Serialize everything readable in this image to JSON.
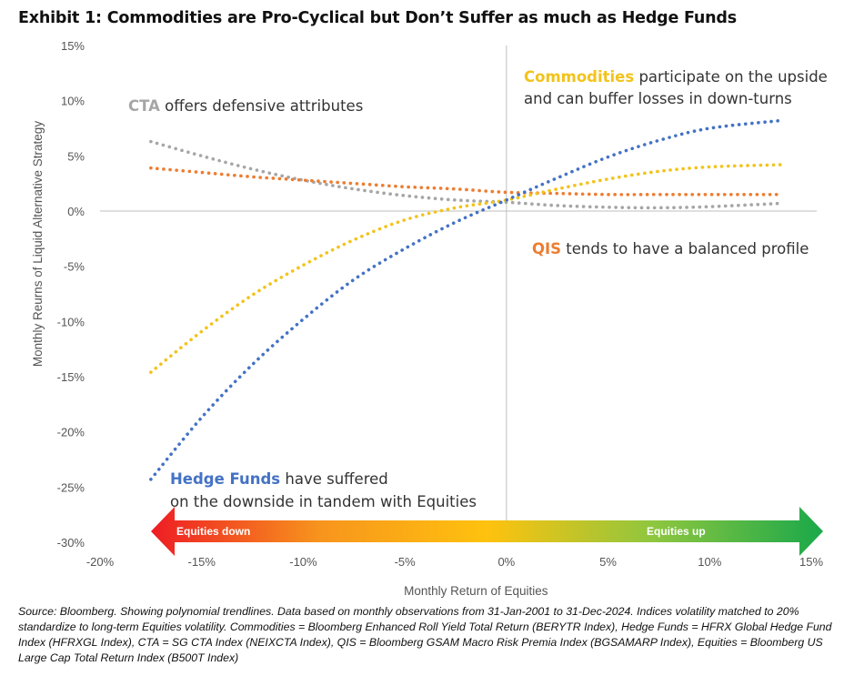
{
  "title": "Exhibit 1: Commodities are Pro-Cyclical but Don’t Suffer as much as Hedge Funds",
  "source": "Source: Bloomberg. Showing polynomial trendlines. Data based on monthly observations from 31-Jan-2001 to 31-Dec-2024. Indices volatility matched to 20% standardize to long-term Equities volatility. Commodities = Bloomberg Enhanced Roll Yield Total Return (BERYTR Index), Hedge Funds = HFRX Global Hedge Fund Index (HFRXGL Index), CTA = SG CTA Index (NEIXCTA Index), QIS = Bloomberg GSAM Macro Risk Premia Index (BGSAMARP Index), Equities = Bloomberg US Large Cap Total Return Index (B500T Index)",
  "chart_data": {
    "type": "line",
    "xlabel": "Monthly Return of Equities",
    "ylabel": "Monthly Reurns of Liquid Alternative Strategy",
    "xlim": [
      -20,
      15
    ],
    "ylim": [
      -30,
      15
    ],
    "x_ticks": [
      "-20%",
      "-15%",
      "-10%",
      "-5%",
      "0%",
      "5%",
      "10%",
      "15%"
    ],
    "y_ticks": [
      "15%",
      "10%",
      "5%",
      "0%",
      "-5%",
      "-10%",
      "-15%",
      "-20%",
      "-25%",
      "-30%"
    ],
    "line_style": "dotted",
    "series": [
      {
        "key": "hedge",
        "color": "#4472c4",
        "x": [
          -17.5,
          -15,
          -12.5,
          -10,
          -7.5,
          -5,
          -2.5,
          0,
          2.5,
          5,
          7.5,
          10,
          13.5
        ],
        "y": [
          -24.3,
          -18.7,
          -13.9,
          -9.8,
          -6.2,
          -3.4,
          -1.0,
          1.0,
          3.0,
          4.9,
          6.4,
          7.5,
          8.2
        ]
      },
      {
        "key": "commodities",
        "color": "#f2c31b",
        "x": [
          -17.5,
          -15,
          -12.5,
          -10,
          -7.5,
          -5,
          -2.5,
          0,
          2.5,
          5,
          7.5,
          10,
          13.5
        ],
        "y": [
          -14.6,
          -10.9,
          -7.6,
          -4.9,
          -2.6,
          -0.8,
          0.3,
          1.0,
          2.0,
          2.9,
          3.6,
          4.0,
          4.2
        ]
      },
      {
        "key": "cta",
        "color": "#a6a6a6",
        "x": [
          -17.5,
          -15,
          -12.5,
          -10,
          -7.5,
          -5,
          -2.5,
          0,
          2.5,
          5,
          7.5,
          10,
          13.5
        ],
        "y": [
          6.3,
          5.0,
          3.8,
          2.8,
          2.0,
          1.4,
          1.0,
          0.8,
          0.5,
          0.35,
          0.3,
          0.4,
          0.7
        ]
      },
      {
        "key": "qis",
        "color": "#ed7d31",
        "x": [
          -17.5,
          -15,
          -12.5,
          -10,
          -7.5,
          -5,
          -2.5,
          0,
          2.5,
          5,
          7.5,
          10,
          13.5
        ],
        "y": [
          3.9,
          3.5,
          3.1,
          2.8,
          2.5,
          2.2,
          2.0,
          1.7,
          1.6,
          1.5,
          1.5,
          1.5,
          1.5
        ]
      }
    ],
    "annotations": {
      "commodities": {
        "bold": "Commodities",
        "rest": " participate on the upside",
        "line2": "and can buffer losses in down-turns",
        "color": "#f2c31b"
      },
      "cta": {
        "bold": "CTA",
        "rest": " offers defensive attributes",
        "color": "#a6a6a6"
      },
      "qis": {
        "bold": "QIS",
        "rest": " tends to have a balanced profile",
        "color": "#ed7d31"
      },
      "hedge": {
        "bold": "Hedge Funds",
        "rest": " have suffered",
        "line2": "on the downside in tandem with Equities",
        "color": "#4472c4"
      }
    },
    "arrow": {
      "left_label": "Equities down",
      "right_label": "Equities up",
      "colors": [
        "#ee1c24",
        "#f7941d",
        "#ffc20e",
        "#8dc63f",
        "#1aa84a"
      ]
    },
    "grid": false
  }
}
